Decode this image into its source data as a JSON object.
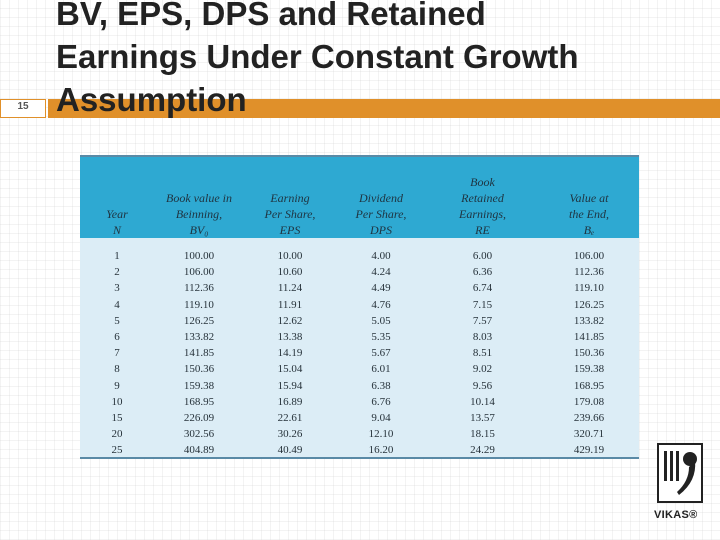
{
  "slide": {
    "number": "15",
    "title": "BV, EPS, DPS and Retained\nEarnings Under Constant Growth\nAssumption"
  },
  "table": {
    "headers": [
      "Year\nN",
      "Book value in\nBeinning,\nBV₀",
      "Earning\nPer Share,\nEPS",
      "Dividend\nPer Share,\nDPS",
      "Book\nRetained\nEarnings,\nRE",
      "Value at\nthe End,\nBₑ"
    ],
    "rows": [
      [
        "1",
        "100.00",
        "10.00",
        "4.00",
        "6.00",
        "106.00"
      ],
      [
        "2",
        "106.00",
        "10.60",
        "4.24",
        "6.36",
        "112.36"
      ],
      [
        "3",
        "112.36",
        "11.24",
        "4.49",
        "6.74",
        "119.10"
      ],
      [
        "4",
        "119.10",
        "11.91",
        "4.76",
        "7.15",
        "126.25"
      ],
      [
        "5",
        "126.25",
        "12.62",
        "5.05",
        "7.57",
        "133.82"
      ],
      [
        "6",
        "133.82",
        "13.38",
        "5.35",
        "8.03",
        "141.85"
      ],
      [
        "7",
        "141.85",
        "14.19",
        "5.67",
        "8.51",
        "150.36"
      ],
      [
        "8",
        "150.36",
        "15.04",
        "6.01",
        "9.02",
        "159.38"
      ],
      [
        "9",
        "159.38",
        "15.94",
        "6.38",
        "9.56",
        "168.95"
      ],
      [
        "10",
        "168.95",
        "16.89",
        "6.76",
        "10.14",
        "179.08"
      ],
      [
        "15",
        "226.09",
        "22.61",
        "9.04",
        "13.57",
        "239.66"
      ],
      [
        "20",
        "302.56",
        "30.26",
        "12.10",
        "18.15",
        "320.71"
      ],
      [
        "25",
        "404.89",
        "40.49",
        "16.20",
        "24.29",
        "429.19"
      ]
    ]
  },
  "logo": {
    "text": "VIKAS®"
  },
  "colors": {
    "accent_bar": "#e0902a",
    "table_header": "#2ea9d2",
    "table_body": "#dcedf6"
  }
}
